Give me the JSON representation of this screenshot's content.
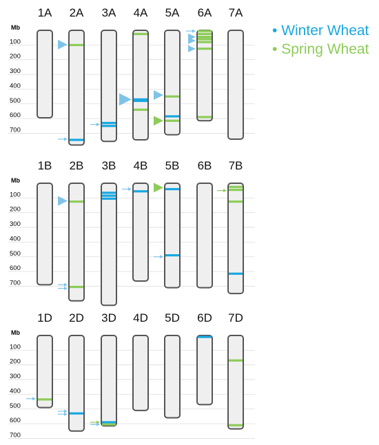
{
  "legend": [
    {
      "label": "Winter Wheat",
      "color": "#1aa7e0"
    },
    {
      "label": "Spring Wheat",
      "color": "#8dcc58"
    }
  ],
  "axis": {
    "title": "Mb",
    "ticks": [
      100,
      200,
      300,
      400,
      500,
      600,
      700
    ]
  },
  "colors": {
    "winter": "#1aa7e0",
    "winter_arrow": "#7fc4e8",
    "spring": "#8dcc58",
    "chromosome_fill": "#efefef",
    "chromosome_stroke": "#555555",
    "grid": "#dddddd"
  },
  "genomes": [
    {
      "name": "A",
      "chromosomes": [
        {
          "label": "1A",
          "length_mb": 595,
          "markers": [],
          "arrows": []
        },
        {
          "label": "2A",
          "length_mb": 780,
          "markers": [
            {
              "pos": 100,
              "type": "spring"
            },
            {
              "pos": 745,
              "type": "winter"
            }
          ],
          "arrows": [
            {
              "pos": 97,
              "type": "winter",
              "size": "large"
            },
            {
              "pos": 740,
              "type": "winter",
              "size": "small"
            }
          ]
        },
        {
          "label": "3A",
          "length_mb": 755,
          "markers": [
            {
              "pos": 630,
              "type": "winter"
            },
            {
              "pos": 650,
              "type": "winter"
            }
          ],
          "arrows": [
            {
              "pos": 640,
              "type": "winter",
              "size": "small"
            }
          ]
        },
        {
          "label": "4A",
          "length_mb": 745,
          "markers": [
            {
              "pos": 25,
              "type": "spring"
            },
            {
              "pos": 470,
              "type": "winter"
            },
            {
              "pos": 480,
              "type": "winter"
            },
            {
              "pos": 540,
              "type": "spring"
            }
          ],
          "arrows": [
            {
              "pos": 470,
              "type": "winter",
              "size": "xlarge"
            }
          ]
        },
        {
          "label": "5A",
          "length_mb": 710,
          "markers": [
            {
              "pos": 450,
              "type": "spring"
            },
            {
              "pos": 585,
              "type": "winter"
            },
            {
              "pos": 615,
              "type": "spring"
            }
          ],
          "arrows": [
            {
              "pos": 440,
              "type": "winter",
              "size": "large"
            },
            {
              "pos": 615,
              "type": "spring",
              "size": "large"
            }
          ]
        },
        {
          "label": "6A",
          "length_mb": 615,
          "markers": [
            {
              "pos": 5,
              "type": "spring"
            },
            {
              "pos": 25,
              "type": "spring"
            },
            {
              "pos": 45,
              "type": "spring"
            },
            {
              "pos": 60,
              "type": "spring"
            },
            {
              "pos": 80,
              "type": "spring"
            },
            {
              "pos": 125,
              "type": "spring"
            },
            {
              "pos": 590,
              "type": "spring"
            }
          ],
          "arrows": [
            {
              "pos": 5,
              "type": "winter",
              "size": "small"
            },
            {
              "pos": 45,
              "type": "winter",
              "size": "medium"
            },
            {
              "pos": 70,
              "type": "winter",
              "size": "medium"
            },
            {
              "pos": 125,
              "type": "winter",
              "size": "medium"
            }
          ]
        },
        {
          "label": "7A",
          "length_mb": 740,
          "markers": [],
          "arrows": []
        }
      ]
    },
    {
      "name": "B",
      "chromosomes": [
        {
          "label": "1B",
          "length_mb": 690,
          "markers": [],
          "arrows": []
        },
        {
          "label": "2B",
          "length_mb": 800,
          "markers": [
            {
              "pos": 125,
              "type": "spring"
            },
            {
              "pos": 705,
              "type": "spring"
            }
          ],
          "arrows": [
            {
              "pos": 120,
              "type": "winter",
              "size": "large"
            },
            {
              "pos": 690,
              "type": "winter",
              "size": "small"
            },
            {
              "pos": 715,
              "type": "winter",
              "size": "small"
            }
          ]
        },
        {
          "label": "3B",
          "length_mb": 830,
          "markers": [
            {
              "pos": 65,
              "type": "winter"
            },
            {
              "pos": 85,
              "type": "winter"
            },
            {
              "pos": 105,
              "type": "winter"
            }
          ],
          "arrows": []
        },
        {
          "label": "4B",
          "length_mb": 665,
          "markers": [
            {
              "pos": 55,
              "type": "winter"
            }
          ],
          "arrows": [
            {
              "pos": 40,
              "type": "winter",
              "size": "small"
            }
          ]
        },
        {
          "label": "5B",
          "length_mb": 710,
          "markers": [
            {
              "pos": 40,
              "type": "winter"
            },
            {
              "pos": 490,
              "type": "winter"
            }
          ],
          "arrows": [
            {
              "pos": 30,
              "type": "spring",
              "size": "large"
            },
            {
              "pos": 500,
              "type": "winter",
              "size": "small"
            }
          ]
        },
        {
          "label": "6B",
          "length_mb": 710,
          "markers": [],
          "arrows": []
        },
        {
          "label": "7B",
          "length_mb": 750,
          "markers": [
            {
              "pos": 25,
              "type": "spring"
            },
            {
              "pos": 45,
              "type": "spring"
            },
            {
              "pos": 125,
              "type": "spring"
            },
            {
              "pos": 615,
              "type": "winter"
            }
          ],
          "arrows": [
            {
              "pos": 50,
              "type": "spring",
              "size": "small"
            }
          ]
        }
      ]
    },
    {
      "name": "D",
      "chromosomes": [
        {
          "label": "1D",
          "length_mb": 490,
          "markers": [
            {
              "pos": 435,
              "type": "spring"
            }
          ],
          "arrows": [
            {
              "pos": 430,
              "type": "winter",
              "size": "small"
            }
          ]
        },
        {
          "label": "2D",
          "length_mb": 650,
          "markers": [
            {
              "pos": 530,
              "type": "winter"
            }
          ],
          "arrows": [
            {
              "pos": 515,
              "type": "winter",
              "size": "small"
            },
            {
              "pos": 535,
              "type": "winter",
              "size": "small"
            }
          ]
        },
        {
          "label": "3D",
          "length_mb": 615,
          "markers": [
            {
              "pos": 590,
              "type": "winter"
            },
            {
              "pos": 605,
              "type": "spring"
            }
          ],
          "arrows": [
            {
              "pos": 590,
              "type": "spring",
              "size": "small"
            },
            {
              "pos": 605,
              "type": "winter",
              "size": "small"
            }
          ]
        },
        {
          "label": "4D",
          "length_mb": 510,
          "markers": [],
          "arrows": []
        },
        {
          "label": "5D",
          "length_mb": 560,
          "markers": [],
          "arrows": []
        },
        {
          "label": "6D",
          "length_mb": 470,
          "markers": [
            {
              "pos": 10,
              "type": "winter"
            }
          ],
          "arrows": []
        },
        {
          "label": "7D",
          "length_mb": 635,
          "markers": [
            {
              "pos": 170,
              "type": "spring"
            },
            {
              "pos": 610,
              "type": "spring"
            }
          ],
          "arrows": []
        }
      ]
    }
  ]
}
